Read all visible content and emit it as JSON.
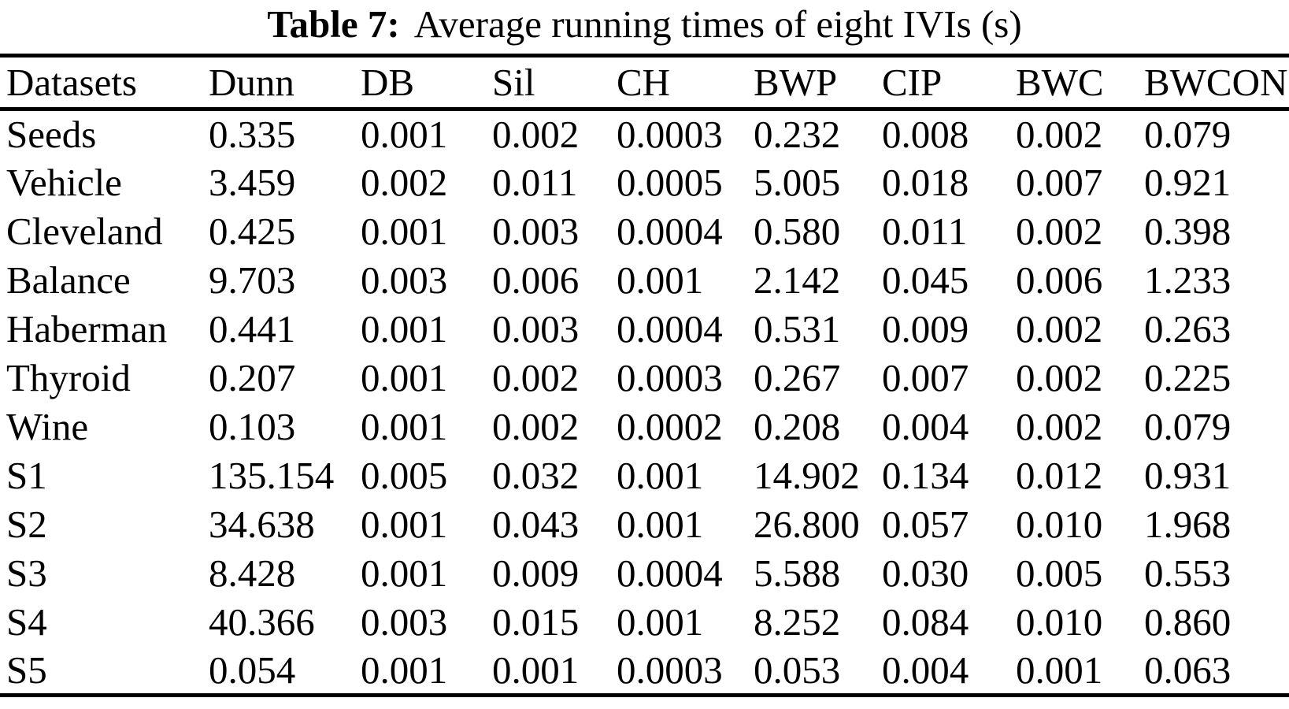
{
  "title": {
    "label": "Table 7:",
    "caption": "Average running times of eight IVIs (s)"
  },
  "colors": {
    "text": "#000000",
    "background": "#ffffff",
    "rule": "#000000"
  },
  "table": {
    "columns": [
      "Datasets",
      "Dunn",
      "DB",
      "Sil",
      "CH",
      "BWP",
      "CIP",
      "BWC",
      "BWCON"
    ],
    "rows": [
      {
        "dataset": "Seeds",
        "values": [
          "0.335",
          "0.001",
          "0.002",
          "0.0003",
          "0.232",
          "0.008",
          "0.002",
          "0.079"
        ]
      },
      {
        "dataset": "Vehicle",
        "values": [
          "3.459",
          "0.002",
          "0.011",
          "0.0005",
          "5.005",
          "0.018",
          "0.007",
          "0.921"
        ]
      },
      {
        "dataset": "Cleveland",
        "values": [
          "0.425",
          "0.001",
          "0.003",
          "0.0004",
          "0.580",
          "0.011",
          "0.002",
          "0.398"
        ]
      },
      {
        "dataset": "Balance",
        "values": [
          "9.703",
          "0.003",
          "0.006",
          "0.001",
          "2.142",
          "0.045",
          "0.006",
          "1.233"
        ]
      },
      {
        "dataset": "Haberman",
        "values": [
          "0.441",
          "0.001",
          "0.003",
          "0.0004",
          "0.531",
          "0.009",
          "0.002",
          "0.263"
        ]
      },
      {
        "dataset": "Thyroid",
        "values": [
          "0.207",
          "0.001",
          "0.002",
          "0.0003",
          "0.267",
          "0.007",
          "0.002",
          "0.225"
        ]
      },
      {
        "dataset": "Wine",
        "values": [
          "0.103",
          "0.001",
          "0.002",
          "0.0002",
          "0.208",
          "0.004",
          "0.002",
          "0.079"
        ]
      },
      {
        "dataset": "S1",
        "values": [
          "135.154",
          "0.005",
          "0.032",
          "0.001",
          "14.902",
          "0.134",
          "0.012",
          "0.931"
        ]
      },
      {
        "dataset": "S2",
        "values": [
          "34.638",
          "0.001",
          "0.043",
          "0.001",
          "26.800",
          "0.057",
          "0.010",
          "1.968"
        ]
      },
      {
        "dataset": "S3",
        "values": [
          "8.428",
          "0.001",
          "0.009",
          "0.0004",
          "5.588",
          "0.030",
          "0.005",
          "0.553"
        ]
      },
      {
        "dataset": "S4",
        "values": [
          "40.366",
          "0.003",
          "0.015",
          "0.001",
          "8.252",
          "0.084",
          "0.010",
          "0.860"
        ]
      },
      {
        "dataset": "S5",
        "values": [
          "0.054",
          "0.001",
          "0.001",
          "0.0003",
          "0.053",
          "0.004",
          "0.001",
          "0.063"
        ]
      }
    ]
  },
  "chart_data": {
    "type": "table",
    "title": "Table 7: Average running times of eight IVIs (s)",
    "columns": [
      "Datasets",
      "Dunn",
      "DB",
      "Sil",
      "CH",
      "BWP",
      "CIP",
      "BWC",
      "BWCON"
    ],
    "rows": [
      [
        "Seeds",
        0.335,
        0.001,
        0.002,
        0.0003,
        0.232,
        0.008,
        0.002,
        0.079
      ],
      [
        "Vehicle",
        3.459,
        0.002,
        0.011,
        0.0005,
        5.005,
        0.018,
        0.007,
        0.921
      ],
      [
        "Cleveland",
        0.425,
        0.001,
        0.003,
        0.0004,
        0.58,
        0.011,
        0.002,
        0.398
      ],
      [
        "Balance",
        9.703,
        0.003,
        0.006,
        0.001,
        2.142,
        0.045,
        0.006,
        1.233
      ],
      [
        "Haberman",
        0.441,
        0.001,
        0.003,
        0.0004,
        0.531,
        0.009,
        0.002,
        0.263
      ],
      [
        "Thyroid",
        0.207,
        0.001,
        0.002,
        0.0003,
        0.267,
        0.007,
        0.002,
        0.225
      ],
      [
        "Wine",
        0.103,
        0.001,
        0.002,
        0.0002,
        0.208,
        0.004,
        0.002,
        0.079
      ],
      [
        "S1",
        135.154,
        0.005,
        0.032,
        0.001,
        14.902,
        0.134,
        0.012,
        0.931
      ],
      [
        "S2",
        34.638,
        0.001,
        0.043,
        0.001,
        26.8,
        0.057,
        0.01,
        1.968
      ],
      [
        "S3",
        8.428,
        0.001,
        0.009,
        0.0004,
        5.588,
        0.03,
        0.005,
        0.553
      ],
      [
        "S4",
        40.366,
        0.003,
        0.015,
        0.001,
        8.252,
        0.084,
        0.01,
        0.86
      ],
      [
        "S5",
        0.054,
        0.001,
        0.001,
        0.0003,
        0.053,
        0.004,
        0.001,
        0.063
      ]
    ]
  }
}
